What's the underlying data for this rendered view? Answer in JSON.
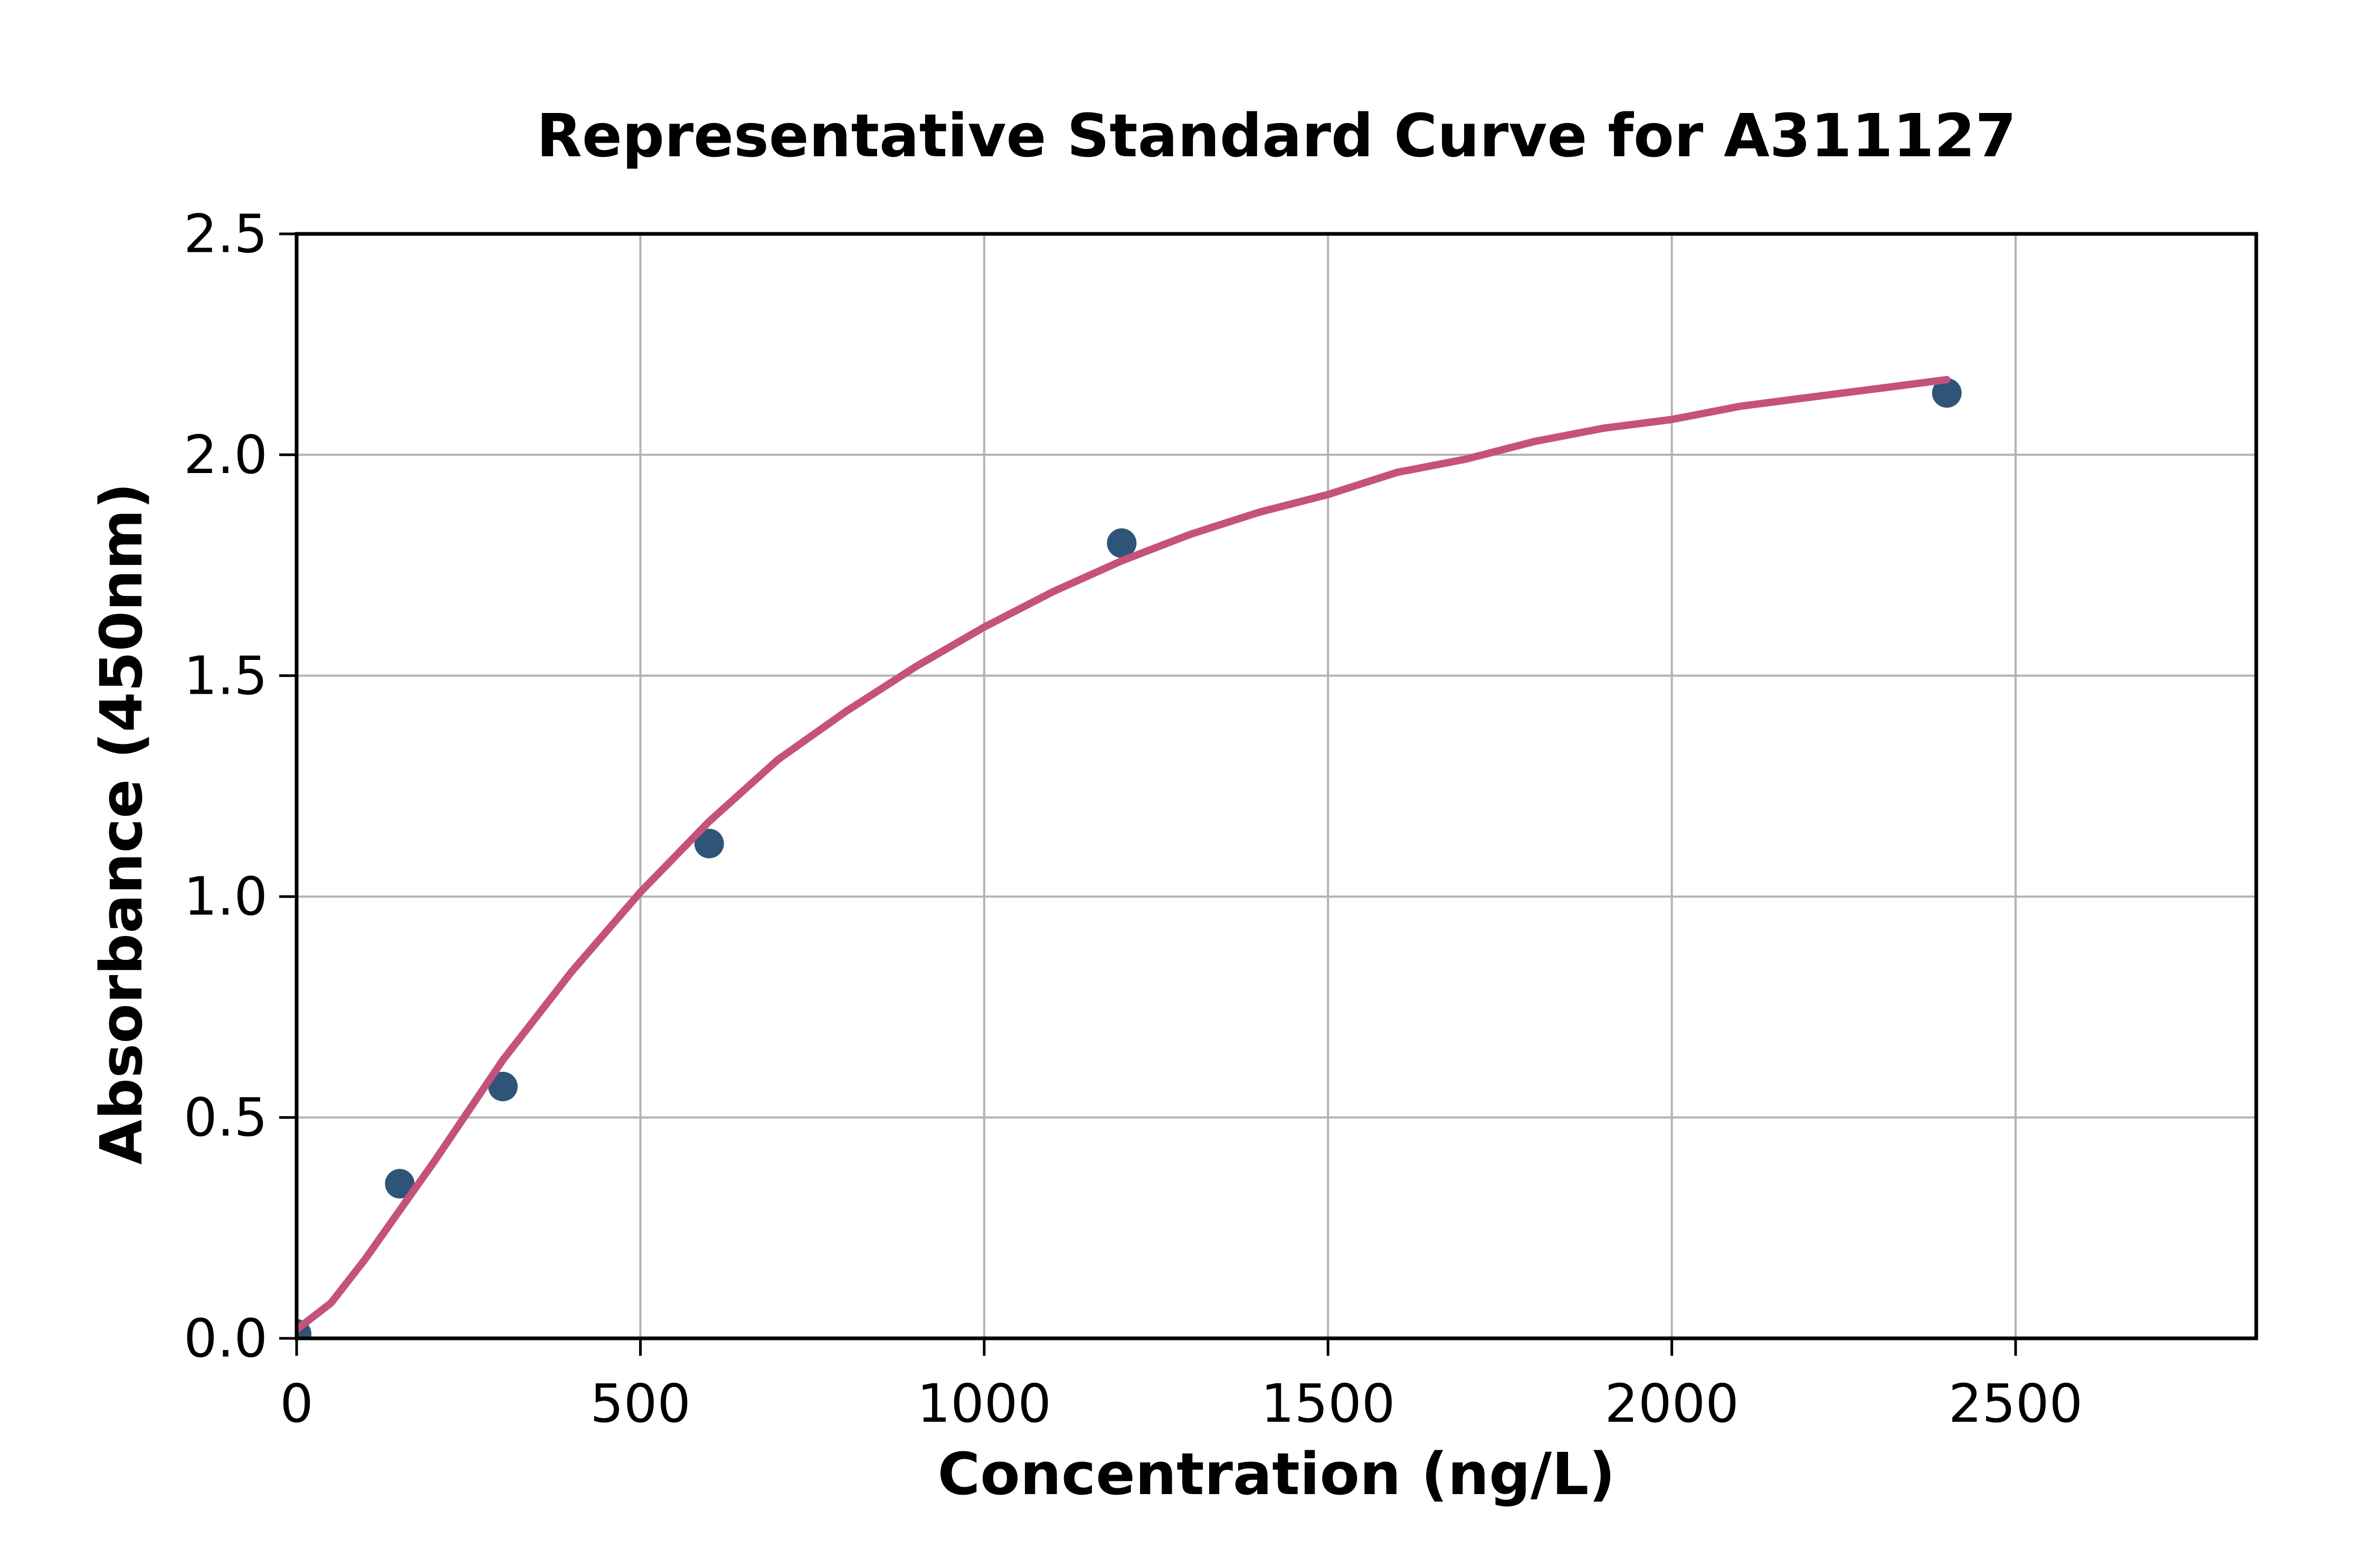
{
  "chart_data": {
    "type": "scatter",
    "title": "Representative Standard Curve for A311127",
    "xlabel": "Concentration (ng/L)",
    "ylabel": "Absorbance (450nm)",
    "xlim": [
      0,
      2850
    ],
    "ylim": [
      0,
      2.5
    ],
    "xticks": {
      "values": [
        0,
        500,
        1000,
        1500,
        2000,
        2500
      ],
      "labels": [
        "0",
        "500",
        "1000",
        "1500",
        "2000",
        "2500"
      ]
    },
    "yticks": {
      "values": [
        0,
        0.5,
        1.0,
        1.5,
        2.0,
        2.5
      ],
      "labels": [
        "0.0",
        "0.5",
        "1.0",
        "1.5",
        "2.0",
        "2.5"
      ]
    },
    "grid": true,
    "legend_position": "none",
    "colors": {
      "point": "#2e5577",
      "curve": "#c4527c",
      "grid": "#b3b3b3",
      "axis": "#000000",
      "background": "#ffffff"
    },
    "series": [
      {
        "name": "standard-points",
        "kind": "scatter",
        "points": [
          [
            0,
            0.01
          ],
          [
            150,
            0.35
          ],
          [
            300,
            0.57
          ],
          [
            600,
            1.12
          ],
          [
            1200,
            1.8
          ],
          [
            2400,
            2.14
          ]
        ]
      },
      {
        "name": "fit-curve",
        "kind": "line",
        "points": [
          [
            0,
            0.02
          ],
          [
            50,
            0.08
          ],
          [
            100,
            0.18
          ],
          [
            200,
            0.4
          ],
          [
            300,
            0.63
          ],
          [
            400,
            0.83
          ],
          [
            500,
            1.01
          ],
          [
            600,
            1.17
          ],
          [
            700,
            1.31
          ],
          [
            800,
            1.42
          ],
          [
            900,
            1.52
          ],
          [
            1000,
            1.61
          ],
          [
            1100,
            1.69
          ],
          [
            1200,
            1.76
          ],
          [
            1300,
            1.82
          ],
          [
            1400,
            1.87
          ],
          [
            1500,
            1.91
          ],
          [
            1600,
            1.96
          ],
          [
            1700,
            1.99
          ],
          [
            1800,
            2.03
          ],
          [
            1900,
            2.06
          ],
          [
            2000,
            2.08
          ],
          [
            2100,
            2.11
          ],
          [
            2200,
            2.13
          ],
          [
            2300,
            2.15
          ],
          [
            2400,
            2.17
          ]
        ]
      }
    ]
  }
}
